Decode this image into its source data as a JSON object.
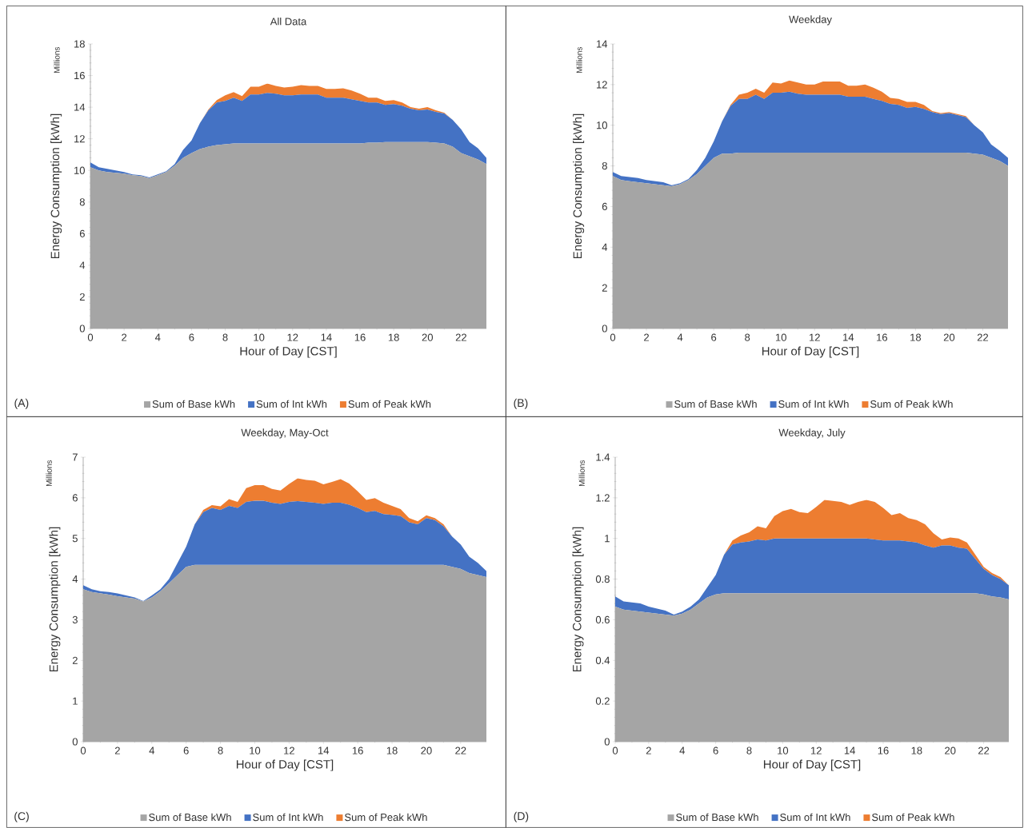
{
  "chart_data": [
    {
      "type": "area",
      "stacked": true,
      "title": "All Data",
      "xlabel": "Hour of Day [CST]",
      "ylabel": "Energy Consumption [kWh]",
      "annotations": [
        "Millions",
        "(A)"
      ],
      "legend": "bottom",
      "x": [
        0,
        0.5,
        1,
        1.5,
        2,
        2.5,
        3,
        3.5,
        4,
        4.5,
        5,
        5.5,
        6,
        6.5,
        7,
        7.5,
        8,
        8.5,
        9,
        9.5,
        10,
        10.5,
        11,
        11.5,
        12,
        12.5,
        13,
        13.5,
        14,
        14.5,
        15,
        15.5,
        16,
        16.5,
        17,
        17.5,
        18,
        18.5,
        19,
        19.5,
        20,
        20.5,
        21,
        21.5,
        22,
        22.5,
        23,
        23.5
      ],
      "xlim": [
        0,
        23.5
      ],
      "xticks": [
        0,
        2,
        4,
        6,
        8,
        10,
        12,
        14,
        16,
        18,
        20,
        22
      ],
      "ylim": [
        0,
        18
      ],
      "yticks": [
        0,
        2,
        4,
        6,
        8,
        10,
        12,
        14,
        16,
        18
      ],
      "series": [
        {
          "name": "Sum of Base kWh",
          "color": "#a5a5a5",
          "values": [
            10.2,
            10.0,
            9.9,
            9.85,
            9.8,
            9.7,
            9.65,
            9.5,
            9.7,
            9.9,
            10.3,
            10.8,
            11.1,
            11.35,
            11.5,
            11.6,
            11.65,
            11.7,
            11.7,
            11.7,
            11.7,
            11.7,
            11.7,
            11.7,
            11.7,
            11.7,
            11.7,
            11.7,
            11.7,
            11.7,
            11.7,
            11.7,
            11.7,
            11.75,
            11.75,
            11.8,
            11.8,
            11.8,
            11.8,
            11.8,
            11.8,
            11.75,
            11.7,
            11.5,
            11.1,
            10.9,
            10.7,
            10.4
          ]
        },
        {
          "name": "Sum of Int kWh",
          "color": "#4472c4",
          "values": [
            0.3,
            0.2,
            0.2,
            0.15,
            0.1,
            0.05,
            0.05,
            0.05,
            0.05,
            0.05,
            0.1,
            0.5,
            0.8,
            1.65,
            2.3,
            2.7,
            2.75,
            2.9,
            2.7,
            3.1,
            3.1,
            3.2,
            3.15,
            3.05,
            3.05,
            3.1,
            3.1,
            3.1,
            2.9,
            2.9,
            2.9,
            2.8,
            2.7,
            2.55,
            2.55,
            2.35,
            2.4,
            2.3,
            2.1,
            2.0,
            2.05,
            1.95,
            1.9,
            1.7,
            1.5,
            0.9,
            0.7,
            0.4
          ]
        },
        {
          "name": "Sum of Peak kWh",
          "color": "#ed7d31",
          "values": [
            0,
            0,
            0,
            0,
            0,
            0,
            0,
            0,
            0,
            0,
            0,
            0,
            0,
            0,
            0.05,
            0.15,
            0.35,
            0.35,
            0.3,
            0.5,
            0.5,
            0.6,
            0.5,
            0.5,
            0.55,
            0.6,
            0.55,
            0.55,
            0.55,
            0.55,
            0.6,
            0.55,
            0.45,
            0.3,
            0.3,
            0.25,
            0.25,
            0.2,
            0.1,
            0.1,
            0.15,
            0.1,
            0.05,
            0,
            0,
            0,
            0,
            0
          ]
        }
      ]
    },
    {
      "type": "area",
      "stacked": true,
      "title": "Weekday",
      "xlabel": "Hour of Day [CST]",
      "ylabel": "Energy Consumption [kWh]",
      "annotations": [
        "Millions",
        "(B)"
      ],
      "legend": "bottom",
      "x": [
        0,
        0.5,
        1,
        1.5,
        2,
        2.5,
        3,
        3.5,
        4,
        4.5,
        5,
        5.5,
        6,
        6.5,
        7,
        7.5,
        8,
        8.5,
        9,
        9.5,
        10,
        10.5,
        11,
        11.5,
        12,
        12.5,
        13,
        13.5,
        14,
        14.5,
        15,
        15.5,
        16,
        16.5,
        17,
        17.5,
        18,
        18.5,
        19,
        19.5,
        20,
        20.5,
        21,
        21.5,
        22,
        22.5,
        23,
        23.5
      ],
      "xlim": [
        0,
        23.5
      ],
      "xticks": [
        0,
        2,
        4,
        6,
        8,
        10,
        12,
        14,
        16,
        18,
        20,
        22
      ],
      "ylim": [
        0,
        14
      ],
      "yticks": [
        0,
        2,
        4,
        6,
        8,
        10,
        12,
        14
      ],
      "series": [
        {
          "name": "Sum of Base kWh",
          "color": "#a5a5a5",
          "values": [
            7.5,
            7.3,
            7.25,
            7.2,
            7.15,
            7.1,
            7.05,
            7.0,
            7.1,
            7.3,
            7.6,
            8.0,
            8.4,
            8.6,
            8.6,
            8.65,
            8.65,
            8.65,
            8.65,
            8.65,
            8.65,
            8.65,
            8.65,
            8.65,
            8.65,
            8.65,
            8.65,
            8.65,
            8.65,
            8.65,
            8.65,
            8.65,
            8.65,
            8.65,
            8.65,
            8.65,
            8.65,
            8.65,
            8.65,
            8.65,
            8.65,
            8.65,
            8.65,
            8.6,
            8.55,
            8.4,
            8.25,
            8.0
          ]
        },
        {
          "name": "Sum of Int kWh",
          "color": "#4472c4",
          "values": [
            0.2,
            0.2,
            0.2,
            0.2,
            0.15,
            0.15,
            0.15,
            0.05,
            0.05,
            0.05,
            0.2,
            0.4,
            0.8,
            1.6,
            2.35,
            2.65,
            2.65,
            2.85,
            2.65,
            2.95,
            2.95,
            3.0,
            2.9,
            2.85,
            2.85,
            2.85,
            2.85,
            2.85,
            2.75,
            2.75,
            2.75,
            2.65,
            2.55,
            2.4,
            2.35,
            2.2,
            2.25,
            2.15,
            2.0,
            1.9,
            1.95,
            1.85,
            1.75,
            1.4,
            1.1,
            0.65,
            0.5,
            0.4
          ]
        },
        {
          "name": "Sum of Peak kWh",
          "color": "#ed7d31",
          "values": [
            0,
            0,
            0,
            0,
            0,
            0,
            0,
            0,
            0,
            0,
            0,
            0,
            0,
            0,
            0.05,
            0.2,
            0.3,
            0.3,
            0.3,
            0.5,
            0.45,
            0.55,
            0.55,
            0.5,
            0.5,
            0.65,
            0.65,
            0.65,
            0.55,
            0.55,
            0.6,
            0.55,
            0.45,
            0.3,
            0.3,
            0.3,
            0.25,
            0.2,
            0.05,
            0.05,
            0.05,
            0.05,
            0.05,
            0,
            0,
            0,
            0,
            0
          ]
        }
      ]
    },
    {
      "type": "area",
      "stacked": true,
      "title": "Weekday, May-Oct",
      "xlabel": "Hour of Day [CST]",
      "ylabel": "Energy Consumption [kWh]",
      "annotations": [
        "Millions",
        "(C)"
      ],
      "legend": "bottom",
      "x": [
        0,
        0.5,
        1,
        1.5,
        2,
        2.5,
        3,
        3.5,
        4,
        4.5,
        5,
        5.5,
        6,
        6.5,
        7,
        7.5,
        8,
        8.5,
        9,
        9.5,
        10,
        10.5,
        11,
        11.5,
        12,
        12.5,
        13,
        13.5,
        14,
        14.5,
        15,
        15.5,
        16,
        16.5,
        17,
        17.5,
        18,
        18.5,
        19,
        19.5,
        20,
        20.5,
        21,
        21.5,
        22,
        22.5,
        23,
        23.5
      ],
      "xlim": [
        0,
        23.5
      ],
      "xticks": [
        0,
        2,
        4,
        6,
        8,
        10,
        12,
        14,
        16,
        18,
        20,
        22
      ],
      "ylim": [
        0,
        7
      ],
      "yticks": [
        0,
        1,
        2,
        3,
        4,
        5,
        6,
        7
      ],
      "series": [
        {
          "name": "Sum of Base kWh",
          "color": "#a5a5a5",
          "values": [
            3.75,
            3.68,
            3.65,
            3.62,
            3.58,
            3.55,
            3.52,
            3.45,
            3.55,
            3.7,
            3.9,
            4.1,
            4.3,
            4.35,
            4.35,
            4.35,
            4.35,
            4.35,
            4.35,
            4.35,
            4.35,
            4.35,
            4.35,
            4.35,
            4.35,
            4.35,
            4.35,
            4.35,
            4.35,
            4.35,
            4.35,
            4.35,
            4.35,
            4.35,
            4.35,
            4.35,
            4.35,
            4.35,
            4.35,
            4.35,
            4.35,
            4.35,
            4.35,
            4.3,
            4.25,
            4.15,
            4.1,
            4.05
          ]
        },
        {
          "name": "Sum of Int kWh",
          "color": "#4472c4",
          "values": [
            0.1,
            0.07,
            0.05,
            0.06,
            0.07,
            0.05,
            0.03,
            0.01,
            0.05,
            0.05,
            0.1,
            0.3,
            0.5,
            1.0,
            1.3,
            1.4,
            1.35,
            1.45,
            1.4,
            1.55,
            1.58,
            1.58,
            1.53,
            1.5,
            1.55,
            1.57,
            1.55,
            1.53,
            1.5,
            1.53,
            1.53,
            1.48,
            1.4,
            1.3,
            1.33,
            1.25,
            1.23,
            1.2,
            1.05,
            1.0,
            1.15,
            1.1,
            0.95,
            0.75,
            0.6,
            0.4,
            0.3,
            0.15
          ]
        },
        {
          "name": "Sum of Peak kWh",
          "color": "#ed7d31",
          "values": [
            0,
            0,
            0,
            0,
            0,
            0,
            0,
            0,
            0,
            0,
            0,
            0,
            0,
            0,
            0.05,
            0.07,
            0.09,
            0.17,
            0.15,
            0.34,
            0.38,
            0.38,
            0.34,
            0.33,
            0.44,
            0.56,
            0.54,
            0.54,
            0.48,
            0.51,
            0.58,
            0.52,
            0.41,
            0.3,
            0.31,
            0.28,
            0.22,
            0.17,
            0.1,
            0.07,
            0.07,
            0.05,
            0.05,
            0,
            0,
            0,
            0,
            0
          ]
        }
      ]
    },
    {
      "type": "area",
      "stacked": true,
      "title": "Weekday, July",
      "xlabel": "Hour of Day [CST]",
      "ylabel": "Energy Consumption [kWh]",
      "annotations": [
        "Millions",
        "(D)"
      ],
      "legend": "bottom",
      "x": [
        0,
        0.5,
        1,
        1.5,
        2,
        2.5,
        3,
        3.5,
        4,
        4.5,
        5,
        5.5,
        6,
        6.5,
        7,
        7.5,
        8,
        8.5,
        9,
        9.5,
        10,
        10.5,
        11,
        11.5,
        12,
        12.5,
        13,
        13.5,
        14,
        14.5,
        15,
        15.5,
        16,
        16.5,
        17,
        17.5,
        18,
        18.5,
        19,
        19.5,
        20,
        20.5,
        21,
        21.5,
        22,
        22.5,
        23,
        23.5
      ],
      "xlim": [
        0,
        23.5
      ],
      "xticks": [
        0,
        2,
        4,
        6,
        8,
        10,
        12,
        14,
        16,
        18,
        20,
        22
      ],
      "ylim": [
        0,
        1.4
      ],
      "yticks": [
        0,
        0.2,
        0.4,
        0.6,
        0.8,
        1,
        1.2,
        1.4
      ],
      "series": [
        {
          "name": "Sum of Base kWh",
          "color": "#a5a5a5",
          "values": [
            0.665,
            0.65,
            0.645,
            0.64,
            0.635,
            0.63,
            0.625,
            0.62,
            0.63,
            0.65,
            0.68,
            0.71,
            0.725,
            0.73,
            0.73,
            0.73,
            0.73,
            0.73,
            0.73,
            0.73,
            0.73,
            0.73,
            0.73,
            0.73,
            0.73,
            0.73,
            0.73,
            0.73,
            0.73,
            0.73,
            0.73,
            0.73,
            0.73,
            0.73,
            0.73,
            0.73,
            0.73,
            0.73,
            0.73,
            0.73,
            0.73,
            0.73,
            0.73,
            0.73,
            0.725,
            0.715,
            0.71,
            0.7
          ]
        },
        {
          "name": "Sum of Int kWh",
          "color": "#4472c4",
          "values": [
            0.05,
            0.04,
            0.04,
            0.04,
            0.03,
            0.025,
            0.02,
            0.005,
            0.01,
            0.015,
            0.02,
            0.05,
            0.095,
            0.19,
            0.24,
            0.25,
            0.255,
            0.265,
            0.26,
            0.27,
            0.27,
            0.27,
            0.27,
            0.27,
            0.27,
            0.27,
            0.27,
            0.27,
            0.27,
            0.27,
            0.27,
            0.265,
            0.26,
            0.26,
            0.26,
            0.255,
            0.25,
            0.235,
            0.225,
            0.235,
            0.235,
            0.225,
            0.22,
            0.17,
            0.125,
            0.105,
            0.09,
            0.07
          ]
        },
        {
          "name": "Sum of Peak kWh",
          "color": "#ed7d31",
          "values": [
            0,
            0,
            0,
            0,
            0,
            0,
            0,
            0,
            0,
            0,
            0,
            0,
            0,
            0,
            0.02,
            0.035,
            0.045,
            0.065,
            0.06,
            0.11,
            0.135,
            0.145,
            0.13,
            0.125,
            0.155,
            0.19,
            0.185,
            0.18,
            0.165,
            0.18,
            0.19,
            0.185,
            0.16,
            0.125,
            0.135,
            0.115,
            0.11,
            0.105,
            0.07,
            0.03,
            0.04,
            0.045,
            0.03,
            0.02,
            0.01,
            0.01,
            0.01,
            0
          ]
        }
      ]
    }
  ]
}
